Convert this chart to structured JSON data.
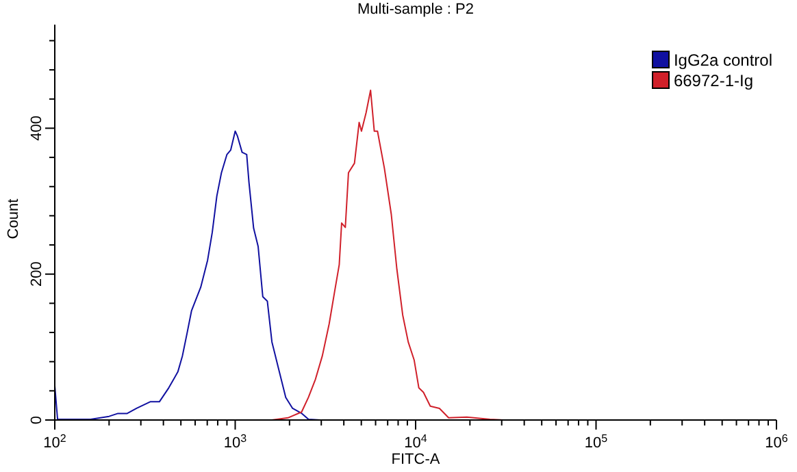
{
  "chart_data": {
    "type": "line",
    "title": "Multi-sample : P2",
    "xlabel": "FITC-A",
    "ylabel": "Count",
    "log": "x",
    "xlim": [
      100,
      1000000
    ],
    "ylim": [
      0,
      542
    ],
    "xticks": [
      {
        "value": 100,
        "label": "10$^{2}$"
      },
      {
        "value": 200,
        "label": null
      },
      {
        "value": 300,
        "label": null
      },
      {
        "value": 400,
        "label": null
      },
      {
        "value": 500,
        "label": null
      },
      {
        "value": 600,
        "label": null
      },
      {
        "value": 700,
        "label": null
      },
      {
        "value": 800,
        "label": null
      },
      {
        "value": 900,
        "label": null
      },
      {
        "value": 1000,
        "label": "10$^{3}$"
      },
      {
        "value": 2000,
        "label": null
      },
      {
        "value": 3000,
        "label": null
      },
      {
        "value": 4000,
        "label": null
      },
      {
        "value": 5000,
        "label": null
      },
      {
        "value": 6000,
        "label": null
      },
      {
        "value": 7000,
        "label": null
      },
      {
        "value": 8000,
        "label": null
      },
      {
        "value": 9000,
        "label": null
      },
      {
        "value": 10000,
        "label": "10$^{4}$"
      },
      {
        "value": 20000,
        "label": null
      },
      {
        "value": 30000,
        "label": null
      },
      {
        "value": 40000,
        "label": null
      },
      {
        "value": 50000,
        "label": null
      },
      {
        "value": 60000,
        "label": null
      },
      {
        "value": 70000,
        "label": null
      },
      {
        "value": 80000,
        "label": null
      },
      {
        "value": 90000,
        "label": null
      },
      {
        "value": 100000,
        "label": "10$^{5}$"
      },
      {
        "value": 200000,
        "label": null
      },
      {
        "value": 300000,
        "label": null
      },
      {
        "value": 400000,
        "label": null
      },
      {
        "value": 500000,
        "label": null
      },
      {
        "value": 600000,
        "label": null
      },
      {
        "value": 700000,
        "label": null
      },
      {
        "value": 800000,
        "label": null
      },
      {
        "value": 900000,
        "label": null
      },
      {
        "value": 1000000,
        "label": "10$^{6}$"
      }
    ],
    "yticks": [
      0,
      {
        "value": 40,
        "label": null
      },
      {
        "value": 80,
        "label": null
      },
      {
        "value": 120,
        "label": null
      },
      {
        "value": 160,
        "label": null
      },
      200,
      {
        "value": 240,
        "label": null
      },
      {
        "value": 280,
        "label": null
      },
      {
        "value": 320,
        "label": null
      },
      {
        "value": 360,
        "label": null
      },
      400,
      {
        "value": 440,
        "label": null
      },
      {
        "value": 480,
        "label": null
      },
      {
        "value": 520,
        "label": null
      }
    ],
    "grid": false,
    "legend": "top right",
    "marker": "none",
    "line_style": "solid",
    "series": [
      {
        "name": "IgG2a control",
        "color": "#1010a0",
        "x": [
          100,
          100,
          103.6,
          117.8,
          158,
          200,
          224,
          252,
          284,
          338,
          380,
          428,
          481,
          510,
          541,
          573,
          644,
          703,
          746,
          791,
          839,
          900,
          944,
          1000,
          1030,
          1092,
          1158,
          1192,
          1265,
          1340,
          1422,
          1507,
          1598,
          1745,
          1906,
          2080,
          2340,
          2550,
          2955
        ],
        "values": [
          0,
          47,
          1,
          1,
          1,
          5,
          9,
          9,
          16,
          25,
          25,
          44,
          66,
          88,
          119,
          150,
          182,
          219,
          257,
          307,
          339,
          364,
          370,
          396,
          389,
          367,
          364,
          326,
          263,
          238,
          169,
          163,
          107,
          69,
          31,
          16,
          9,
          1,
          0
        ]
      },
      {
        "name": "66972-1-Ig",
        "color": "#d0202a",
        "x": [
          1596,
          1960,
          2334,
          2546,
          2786,
          3041,
          3319,
          3556,
          3773,
          3890,
          4077,
          4245,
          4582,
          4864,
          5010,
          5312,
          5628,
          5900,
          6148,
          6714,
          7330,
          7870,
          8480,
          9100,
          9820,
          10420,
          11050,
          12060,
          13550,
          15240,
          19230,
          25820,
          30760
        ],
        "values": [
          0,
          3,
          11,
          31,
          56,
          88,
          132,
          176,
          213,
          270,
          264,
          339,
          352,
          408,
          396,
          421,
          452,
          396,
          396,
          345,
          282,
          207,
          144,
          107,
          82,
          44,
          38,
          19,
          16,
          3,
          4,
          1,
          0
        ]
      }
    ]
  }
}
